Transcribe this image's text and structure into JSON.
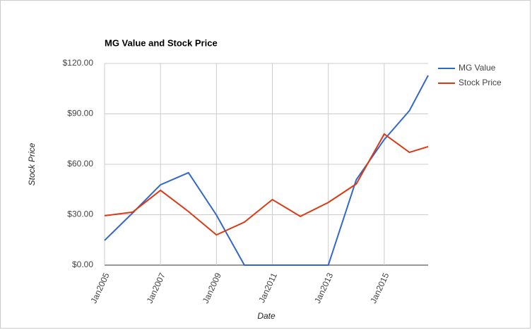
{
  "chart_data": {
    "type": "line",
    "title": "MG Value and Stock Price",
    "x_label": "Date",
    "y_label": "Stock Price",
    "x": [
      2005,
      2006,
      2007,
      2008,
      2009,
      2010,
      2011,
      2012,
      2013,
      2014,
      2015,
      2015.9,
      2016.57
    ],
    "series": [
      {
        "name": "MG Value",
        "color": "#3366cc",
        "values": [
          14.7,
          31,
          47.8,
          55,
          29.8,
          0,
          0,
          0,
          0,
          50.8,
          74.7,
          91.9,
          112.9
        ]
      },
      {
        "name": "Stock Price",
        "color": "#dc3912",
        "values": [
          29.4,
          31.5,
          44.5,
          31.9,
          18,
          25.6,
          39,
          29,
          37.3,
          48.3,
          78,
          67.1,
          70.5
        ]
      }
    ],
    "xlim": [
      2005,
      2016.57
    ],
    "xticks": [
      {
        "value": 2005,
        "label": "Jan2005"
      },
      {
        "value": 2007,
        "label": "Jan2007"
      },
      {
        "value": 2009,
        "label": "Jan2009"
      },
      {
        "value": 2011,
        "label": "Jan2011"
      },
      {
        "value": 2013,
        "label": "Jan2013"
      },
      {
        "value": 2015,
        "label": "Jan2015"
      }
    ],
    "ylim": [
      0,
      120
    ],
    "yticks": [
      {
        "value": 0,
        "label": "$0.00"
      },
      {
        "value": 30,
        "label": "$30.00"
      },
      {
        "value": 60,
        "label": "$60.00"
      },
      {
        "value": 90,
        "label": "$90.00"
      },
      {
        "value": 120,
        "label": "$120.00"
      }
    ],
    "grid": true,
    "legend": "right"
  }
}
